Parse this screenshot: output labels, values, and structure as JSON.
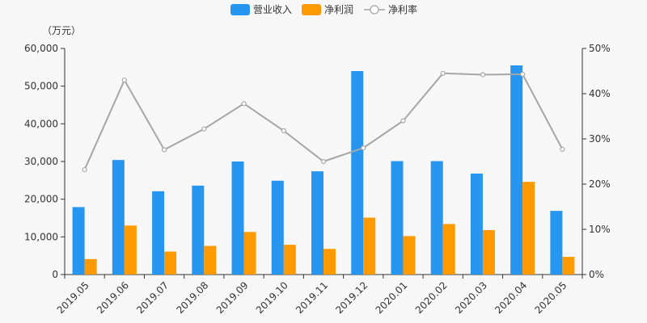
{
  "chart_data": {
    "type": "bar",
    "unit_label": "（万元）",
    "categories": [
      "2019.05",
      "2019.06",
      "2019.07",
      "2019.08",
      "2019.09",
      "2019.10",
      "2019.11",
      "2019.12",
      "2020.01",
      "2020.02",
      "2020.03",
      "2020.04",
      "2020.05"
    ],
    "series": [
      {
        "name": "营业收入",
        "type": "bar",
        "axis": "left",
        "color": "#2796f0",
        "values": [
          17900,
          30400,
          22100,
          23600,
          30000,
          24900,
          27400,
          54000,
          30100,
          30100,
          26800,
          55500,
          16900
        ]
      },
      {
        "name": "净利润",
        "type": "bar",
        "axis": "left",
        "color": "#ff9900",
        "values": [
          4100,
          13000,
          6100,
          7600,
          11300,
          7900,
          6800,
          15100,
          10200,
          13400,
          11800,
          24600,
          4700
        ]
      },
      {
        "name": "净利率",
        "type": "line",
        "axis": "right",
        "color": "#a6a6a6",
        "values": [
          23.2,
          43.0,
          27.6,
          32.2,
          37.8,
          31.8,
          25.0,
          28.0,
          34.0,
          44.5,
          44.2,
          44.3,
          27.7
        ]
      }
    ],
    "y_left": {
      "min": 0,
      "max": 60000,
      "ticks": [
        "0",
        "10,000",
        "20,000",
        "30,000",
        "40,000",
        "50,000",
        "60,000"
      ]
    },
    "y_right": {
      "min": 0,
      "max": 50,
      "ticks": [
        "0%",
        "10%",
        "20%",
        "30%",
        "40%",
        "50%"
      ]
    },
    "legend_position": "top-center",
    "grid": false
  }
}
